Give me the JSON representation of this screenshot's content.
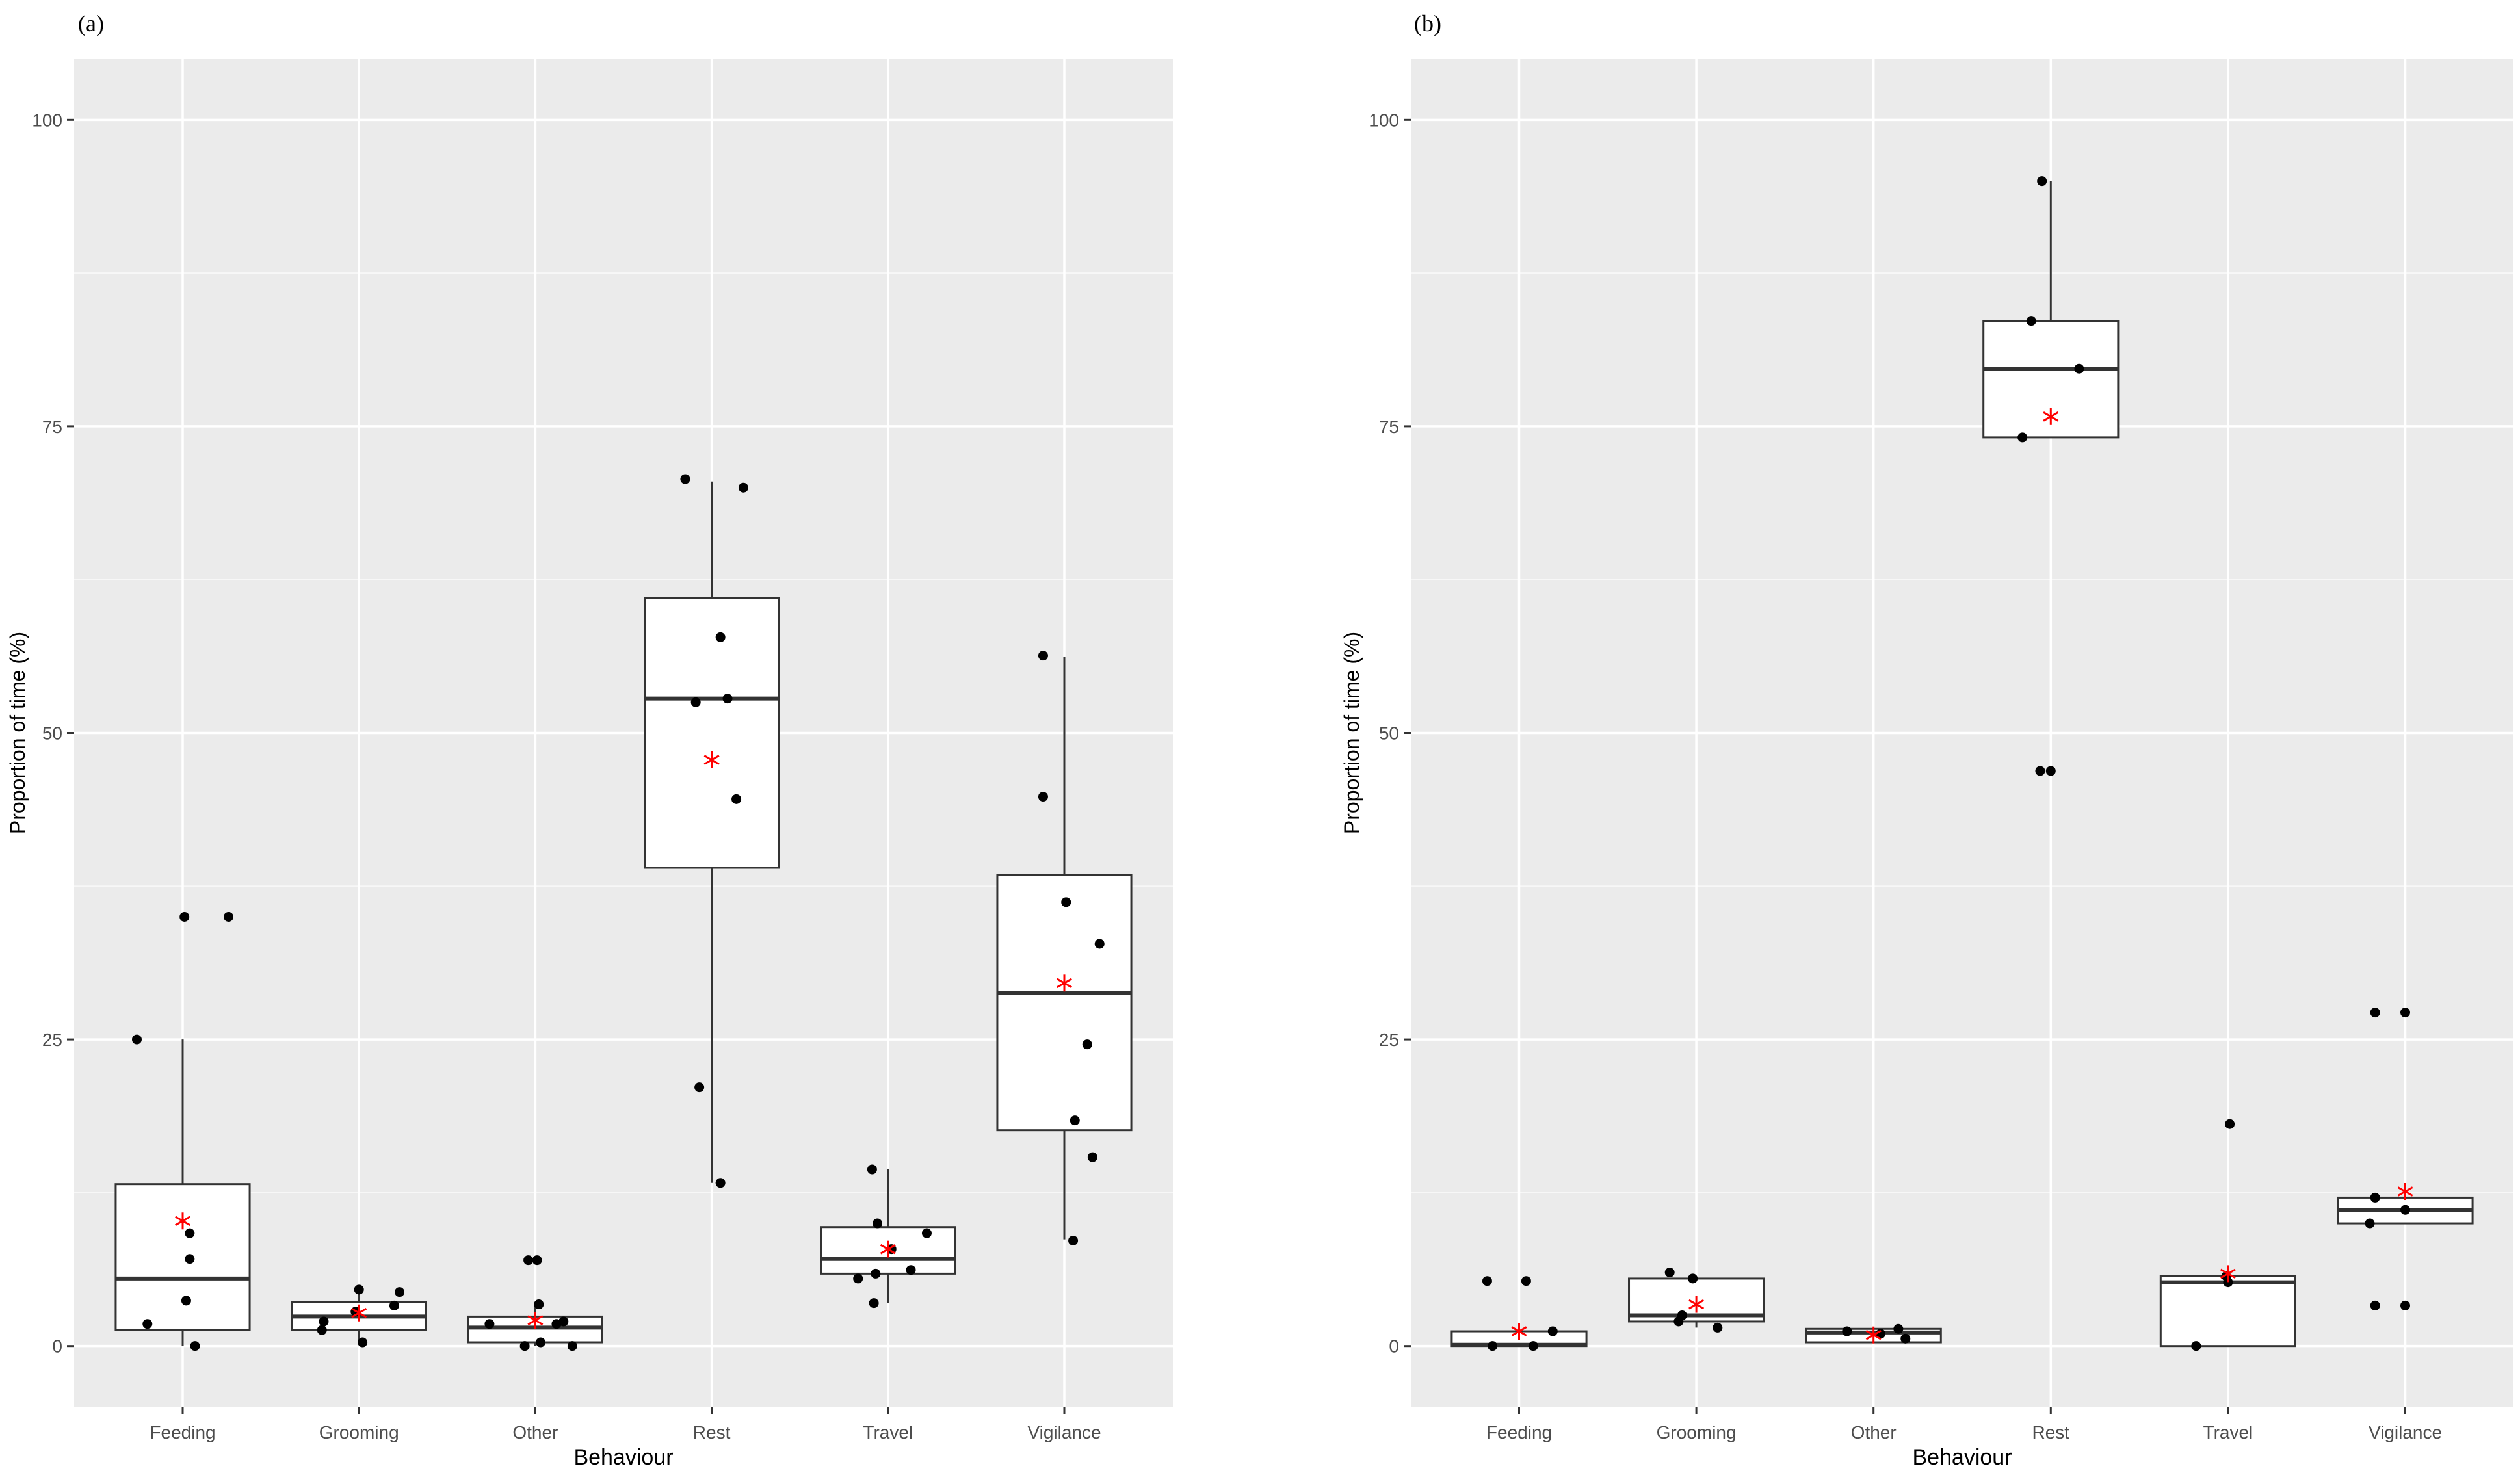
{
  "chart_data": [
    {
      "type": "box",
      "panel_label": "(a)",
      "xlabel": "Behaviour",
      "ylabel": "Proportion of time (%)",
      "ylim": [
        -5,
        105
      ],
      "yticks": [
        0,
        25,
        50,
        75,
        100
      ],
      "grid": true,
      "categories": [
        "Feeding",
        "Grooming",
        "Other",
        "Rest",
        "Travel",
        "Vigilance"
      ],
      "boxes": [
        {
          "q1": 1.3,
          "median": 5.5,
          "q3": 13.2,
          "whisker_low": 0.0,
          "whisker_high": 25.0,
          "mean": 10.2
        },
        {
          "q1": 1.3,
          "median": 2.4,
          "q3": 3.6,
          "whisker_low": 0.3,
          "whisker_high": 4.6,
          "mean": 2.7
        },
        {
          "q1": 0.3,
          "median": 1.5,
          "q3": 2.4,
          "whisker_low": 0.0,
          "whisker_high": 3.4,
          "mean": 2.1
        },
        {
          "q1": 39.0,
          "median": 52.8,
          "q3": 61.0,
          "whisker_low": 13.3,
          "whisker_high": 70.5,
          "mean": 47.8
        },
        {
          "q1": 5.9,
          "median": 7.1,
          "q3": 9.7,
          "whisker_low": 3.5,
          "whisker_high": 14.4,
          "mean": 7.9
        },
        {
          "q1": 17.6,
          "median": 28.8,
          "q3": 38.4,
          "whisker_low": 8.7,
          "whisker_high": 56.2,
          "mean": 29.6
        }
      ],
      "points": [
        [
          35.0,
          35.0,
          25.0,
          9.2,
          7.1,
          3.7,
          1.8,
          0.0
        ],
        [
          4.6,
          4.4,
          3.3,
          2.8,
          2.0,
          1.3,
          0.3
        ],
        [
          7.0,
          7.0,
          3.4,
          2.0,
          1.8,
          1.8,
          0.3,
          0.0,
          0.0
        ],
        [
          70.7,
          70.0,
          57.8,
          52.8,
          52.5,
          44.6,
          21.1,
          13.3
        ],
        [
          14.4,
          10.0,
          9.2,
          7.9,
          6.2,
          5.9,
          5.5,
          3.5
        ],
        [
          56.3,
          44.8,
          36.2,
          32.8,
          24.6,
          18.4,
          15.4,
          8.6
        ]
      ]
    },
    {
      "type": "box",
      "panel_label": "(b)",
      "xlabel": "Behaviour",
      "ylabel": "Proportion of time (%)",
      "ylim": [
        -5,
        105
      ],
      "yticks": [
        0,
        25,
        50,
        75,
        100
      ],
      "grid": true,
      "categories": [
        "Feeding",
        "Grooming",
        "Other",
        "Rest",
        "Travel",
        "Vigilance"
      ],
      "boxes": [
        {
          "q1": 0.0,
          "median": 0.1,
          "q3": 1.2,
          "whisker_low": 0.0,
          "whisker_high": 1.2,
          "mean": 1.2
        },
        {
          "q1": 2.0,
          "median": 2.5,
          "q3": 5.5,
          "whisker_low": 1.5,
          "whisker_high": 5.5,
          "mean": 3.4
        },
        {
          "q1": 0.3,
          "median": 1.1,
          "q3": 1.4,
          "whisker_low": 0.3,
          "whisker_high": 1.4,
          "mean": 0.9
        },
        {
          "q1": 74.1,
          "median": 79.7,
          "q3": 83.6,
          "whisker_low": 74.1,
          "whisker_high": 95.0,
          "mean": 75.8
        },
        {
          "q1": 0.0,
          "median": 5.2,
          "q3": 5.7,
          "whisker_low": 0.0,
          "whisker_high": 5.7,
          "mean": 5.9
        },
        {
          "q1": 10.0,
          "median": 11.1,
          "q3": 12.1,
          "whisker_low": 10.0,
          "whisker_high": 12.1,
          "mean": 12.6
        }
      ],
      "points": [
        [
          5.3,
          5.3,
          1.2,
          0.0,
          0.0
        ],
        [
          6.0,
          5.5,
          2.5,
          2.0,
          1.5
        ],
        [
          1.4,
          1.2,
          1.0,
          0.6
        ],
        [
          95.0,
          83.6,
          79.7,
          74.1,
          46.9,
          46.9
        ],
        [
          18.1,
          5.7,
          5.2,
          0.0
        ],
        [
          27.2,
          27.2,
          12.1,
          11.1,
          10.0,
          3.3,
          3.3
        ]
      ]
    }
  ]
}
